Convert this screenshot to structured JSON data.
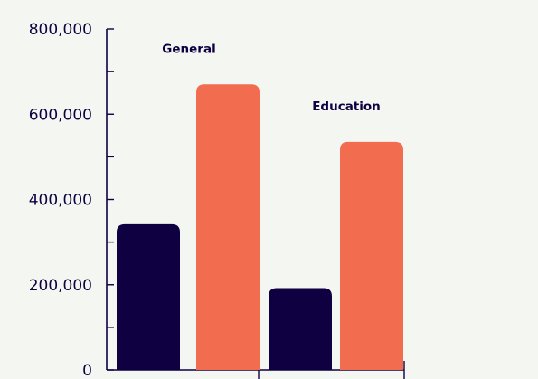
{
  "chart_data": {
    "type": "bar",
    "categories": [
      "General",
      "Education"
    ],
    "series": [
      {
        "color": "#0f0042",
        "values": [
          342000,
          192000
        ]
      },
      {
        "color": "#f26d4f",
        "values": [
          670000,
          535000
        ]
      }
    ],
    "yticks": [
      "0",
      "200,000",
      "400,000",
      "600,000",
      "800,000"
    ],
    "ylim": [
      0,
      800000
    ],
    "title": "",
    "xlabel": "",
    "ylabel": "",
    "grid": false
  },
  "colors": {
    "background": "#f4f6f1",
    "axis": "#0f0042",
    "text": "#0f0042"
  }
}
